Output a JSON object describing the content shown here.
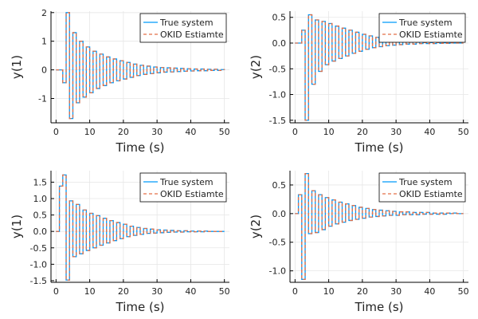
{
  "chart_data": [
    {
      "type": "line",
      "step": true,
      "xlabel": "Time (s)",
      "ylabel": "y(1)",
      "xlim": [
        -1.5,
        51.5
      ],
      "ylim": [
        -1.85,
        2.05
      ],
      "xticks": [
        0,
        10,
        20,
        30,
        40,
        50
      ],
      "yticks": [
        -1,
        0,
        1,
        2
      ],
      "grid": true,
      "legend_position": "top-right",
      "series": [
        {
          "name": "True system",
          "color": "#009AFA",
          "style": "solid",
          "x": [
            0,
            1,
            2,
            3,
            4,
            5,
            6,
            7,
            8,
            9,
            10,
            11,
            12,
            13,
            14,
            15,
            16,
            17,
            18,
            19,
            20,
            21,
            22,
            23,
            24,
            25,
            26,
            27,
            28,
            29,
            30,
            31,
            32,
            33,
            34,
            35,
            36,
            37,
            38,
            39,
            40,
            41,
            42,
            43,
            44,
            45,
            46,
            47,
            48,
            49,
            50
          ],
          "y": [
            0,
            0,
            -0.45,
            2.0,
            -1.7,
            1.3,
            -1.15,
            1.0,
            -0.95,
            0.8,
            -0.8,
            0.65,
            -0.65,
            0.55,
            -0.55,
            0.45,
            -0.45,
            0.38,
            -0.38,
            0.32,
            -0.32,
            0.26,
            -0.26,
            0.2,
            -0.2,
            0.16,
            -0.16,
            0.13,
            -0.13,
            0.1,
            -0.1,
            0.08,
            -0.08,
            0.07,
            -0.07,
            0.06,
            -0.06,
            0.05,
            -0.05,
            0.04,
            -0.04,
            0.03,
            -0.03,
            0.03,
            -0.03,
            0.02,
            -0.02,
            0.02,
            -0.02,
            0.01,
            0.0
          ]
        },
        {
          "name": "OKID Estiamte",
          "color": "#E36F47",
          "style": "dashed",
          "x": [
            0,
            1,
            2,
            3,
            4,
            5,
            6,
            7,
            8,
            9,
            10,
            11,
            12,
            13,
            14,
            15,
            16,
            17,
            18,
            19,
            20,
            21,
            22,
            23,
            24,
            25,
            26,
            27,
            28,
            29,
            30,
            31,
            32,
            33,
            34,
            35,
            36,
            37,
            38,
            39,
            40,
            41,
            42,
            43,
            44,
            45,
            46,
            47,
            48,
            49,
            50
          ],
          "y": [
            0,
            0,
            -0.45,
            2.0,
            -1.7,
            1.3,
            -1.15,
            1.0,
            -0.95,
            0.8,
            -0.8,
            0.65,
            -0.65,
            0.55,
            -0.55,
            0.45,
            -0.45,
            0.38,
            -0.38,
            0.32,
            -0.32,
            0.26,
            -0.26,
            0.2,
            -0.2,
            0.16,
            -0.16,
            0.13,
            -0.13,
            0.1,
            -0.1,
            0.08,
            -0.08,
            0.07,
            -0.07,
            0.06,
            -0.06,
            0.05,
            -0.05,
            0.04,
            -0.04,
            0.03,
            -0.03,
            0.03,
            -0.03,
            0.02,
            -0.02,
            0.02,
            -0.02,
            0.01,
            0.0
          ]
        }
      ]
    },
    {
      "type": "line",
      "step": true,
      "xlabel": "Time (s)",
      "ylabel": "y(2)",
      "xlim": [
        -1.5,
        51.5
      ],
      "ylim": [
        -1.55,
        0.62
      ],
      "xticks": [
        0,
        10,
        20,
        30,
        40,
        50
      ],
      "yticks": [
        -1.5,
        -1.0,
        -0.5,
        0.0,
        0.5
      ],
      "grid": true,
      "legend_position": "top-right",
      "series": [
        {
          "name": "True system",
          "color": "#009AFA",
          "style": "solid",
          "x": [
            0,
            1,
            2,
            3,
            4,
            5,
            6,
            7,
            8,
            9,
            10,
            11,
            12,
            13,
            14,
            15,
            16,
            17,
            18,
            19,
            20,
            21,
            22,
            23,
            24,
            25,
            26,
            27,
            28,
            29,
            30,
            31,
            32,
            33,
            34,
            35,
            36,
            37,
            38,
            39,
            40,
            41,
            42,
            43,
            44,
            45,
            46,
            47,
            48,
            49,
            50
          ],
          "y": [
            0,
            0,
            0.25,
            -1.5,
            0.55,
            -0.8,
            0.45,
            -0.55,
            0.42,
            -0.42,
            0.38,
            -0.35,
            0.33,
            -0.3,
            0.29,
            -0.25,
            0.25,
            -0.2,
            0.21,
            -0.16,
            0.17,
            -0.12,
            0.14,
            -0.09,
            0.11,
            -0.07,
            0.08,
            -0.05,
            0.06,
            -0.04,
            0.04,
            -0.03,
            0.03,
            -0.02,
            0.02,
            -0.02,
            0.02,
            -0.01,
            0.01,
            -0.01,
            0.01,
            -0.01,
            0.01,
            -0.005,
            0.005,
            -0.005,
            0.005,
            0,
            0,
            0,
            0
          ]
        },
        {
          "name": "OKID Estiamte",
          "color": "#E36F47",
          "style": "dashed",
          "x": [
            0,
            1,
            2,
            3,
            4,
            5,
            6,
            7,
            8,
            9,
            10,
            11,
            12,
            13,
            14,
            15,
            16,
            17,
            18,
            19,
            20,
            21,
            22,
            23,
            24,
            25,
            26,
            27,
            28,
            29,
            30,
            31,
            32,
            33,
            34,
            35,
            36,
            37,
            38,
            39,
            40,
            41,
            42,
            43,
            44,
            45,
            46,
            47,
            48,
            49,
            50
          ],
          "y": [
            0,
            0,
            0.25,
            -1.5,
            0.55,
            -0.8,
            0.45,
            -0.55,
            0.42,
            -0.42,
            0.38,
            -0.35,
            0.33,
            -0.3,
            0.29,
            -0.25,
            0.25,
            -0.2,
            0.21,
            -0.16,
            0.17,
            -0.12,
            0.14,
            -0.09,
            0.11,
            -0.07,
            0.08,
            -0.05,
            0.06,
            -0.04,
            0.04,
            -0.03,
            0.03,
            -0.02,
            0.02,
            -0.02,
            0.02,
            -0.01,
            0.01,
            -0.01,
            0.01,
            -0.01,
            0.01,
            -0.005,
            0.005,
            -0.005,
            0.005,
            0,
            0,
            0,
            0
          ]
        }
      ]
    },
    {
      "type": "line",
      "step": true,
      "xlabel": "Time (s)",
      "ylabel": "y(1)",
      "xlim": [
        -1.5,
        51.5
      ],
      "ylim": [
        -1.55,
        1.85
      ],
      "xticks": [
        0,
        10,
        20,
        30,
        40,
        50
      ],
      "yticks": [
        -1.5,
        -1.0,
        -0.5,
        0.0,
        0.5,
        1.0,
        1.5
      ],
      "grid": true,
      "legend_position": "top-right",
      "series": [
        {
          "name": "True system",
          "color": "#009AFA",
          "style": "solid",
          "x": [
            0,
            1,
            2,
            3,
            4,
            5,
            6,
            7,
            8,
            9,
            10,
            11,
            12,
            13,
            14,
            15,
            16,
            17,
            18,
            19,
            20,
            21,
            22,
            23,
            24,
            25,
            26,
            27,
            28,
            29,
            30,
            31,
            32,
            33,
            34,
            35,
            36,
            37,
            38,
            39,
            40,
            41,
            42,
            43,
            44,
            45,
            46,
            47,
            48,
            49,
            50
          ],
          "y": [
            0,
            1.38,
            1.72,
            -1.48,
            0.93,
            -0.77,
            0.82,
            -0.68,
            0.65,
            -0.58,
            0.55,
            -0.5,
            0.48,
            -0.42,
            0.4,
            -0.35,
            0.33,
            -0.28,
            0.27,
            -0.22,
            0.22,
            -0.16,
            0.16,
            -0.12,
            0.12,
            -0.09,
            0.09,
            -0.06,
            0.07,
            -0.05,
            0.05,
            -0.04,
            0.04,
            -0.03,
            0.03,
            -0.02,
            0.02,
            -0.02,
            0.02,
            -0.01,
            0.01,
            -0.01,
            0.01,
            -0.01,
            0.01,
            0,
            0,
            0,
            0,
            0,
            0
          ]
        },
        {
          "name": "OKID Estiamte",
          "color": "#E36F47",
          "style": "dashed",
          "x": [
            0,
            1,
            2,
            3,
            4,
            5,
            6,
            7,
            8,
            9,
            10,
            11,
            12,
            13,
            14,
            15,
            16,
            17,
            18,
            19,
            20,
            21,
            22,
            23,
            24,
            25,
            26,
            27,
            28,
            29,
            30,
            31,
            32,
            33,
            34,
            35,
            36,
            37,
            38,
            39,
            40,
            41,
            42,
            43,
            44,
            45,
            46,
            47,
            48,
            49,
            50
          ],
          "y": [
            0,
            1.38,
            1.72,
            -1.48,
            0.93,
            -0.77,
            0.82,
            -0.68,
            0.65,
            -0.58,
            0.55,
            -0.5,
            0.48,
            -0.42,
            0.4,
            -0.35,
            0.33,
            -0.28,
            0.27,
            -0.22,
            0.22,
            -0.16,
            0.16,
            -0.12,
            0.12,
            -0.09,
            0.09,
            -0.06,
            0.07,
            -0.05,
            0.05,
            -0.04,
            0.04,
            -0.03,
            0.03,
            -0.02,
            0.02,
            -0.02,
            0.02,
            -0.01,
            0.01,
            -0.01,
            0.01,
            -0.01,
            0.01,
            0,
            0,
            0,
            0,
            0,
            0
          ]
        }
      ]
    },
    {
      "type": "line",
      "step": true,
      "xlabel": "Time (s)",
      "ylabel": "y(2)",
      "xlim": [
        -1.5,
        51.5
      ],
      "ylim": [
        -1.2,
        0.75
      ],
      "xticks": [
        0,
        10,
        20,
        30,
        40,
        50
      ],
      "yticks": [
        -1.0,
        -0.5,
        0.0,
        0.5
      ],
      "grid": true,
      "legend_position": "top-right",
      "series": [
        {
          "name": "True system",
          "color": "#009AFA",
          "style": "solid",
          "x": [
            0,
            1,
            2,
            3,
            4,
            5,
            6,
            7,
            8,
            9,
            10,
            11,
            12,
            13,
            14,
            15,
            16,
            17,
            18,
            19,
            20,
            21,
            22,
            23,
            24,
            25,
            26,
            27,
            28,
            29,
            30,
            31,
            32,
            33,
            34,
            35,
            36,
            37,
            38,
            39,
            40,
            41,
            42,
            43,
            44,
            45,
            46,
            47,
            48,
            49,
            50
          ],
          "y": [
            0,
            0.33,
            -1.15,
            0.7,
            -0.35,
            0.4,
            -0.33,
            0.33,
            -0.28,
            0.28,
            -0.22,
            0.24,
            -0.18,
            0.2,
            -0.15,
            0.17,
            -0.12,
            0.14,
            -0.1,
            0.11,
            -0.08,
            0.09,
            -0.06,
            0.07,
            -0.05,
            0.06,
            -0.04,
            0.05,
            -0.03,
            0.04,
            -0.03,
            0.03,
            -0.02,
            0.03,
            -0.02,
            0.02,
            -0.02,
            0.02,
            -0.01,
            0.02,
            -0.01,
            0.01,
            -0.01,
            0.01,
            -0.01,
            0.01,
            0,
            0.01,
            0,
            0,
            0
          ]
        },
        {
          "name": "OKID Estiamte",
          "color": "#E36F47",
          "style": "dashed",
          "x": [
            0,
            1,
            2,
            3,
            4,
            5,
            6,
            7,
            8,
            9,
            10,
            11,
            12,
            13,
            14,
            15,
            16,
            17,
            18,
            19,
            20,
            21,
            22,
            23,
            24,
            25,
            26,
            27,
            28,
            29,
            30,
            31,
            32,
            33,
            34,
            35,
            36,
            37,
            38,
            39,
            40,
            41,
            42,
            43,
            44,
            45,
            46,
            47,
            48,
            49,
            50
          ],
          "y": [
            0,
            0.33,
            -1.15,
            0.7,
            -0.35,
            0.4,
            -0.33,
            0.33,
            -0.28,
            0.28,
            -0.22,
            0.24,
            -0.18,
            0.2,
            -0.15,
            0.17,
            -0.12,
            0.14,
            -0.1,
            0.11,
            -0.08,
            0.09,
            -0.06,
            0.07,
            -0.05,
            0.06,
            -0.04,
            0.05,
            -0.03,
            0.04,
            -0.03,
            0.03,
            -0.02,
            0.03,
            -0.02,
            0.02,
            -0.02,
            0.02,
            -0.01,
            0.02,
            -0.01,
            0.01,
            -0.01,
            0.01,
            -0.01,
            0.01,
            0,
            0.01,
            0,
            0,
            0
          ]
        }
      ]
    }
  ]
}
